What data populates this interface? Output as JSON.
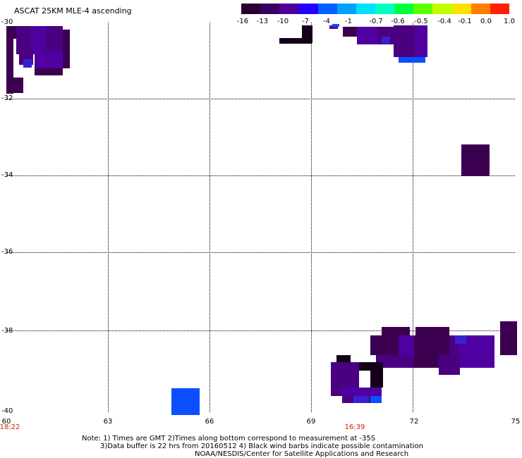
{
  "title": "ASCAT 25KM MLE-4 ascending",
  "colorbar": {
    "labels": [
      "-16",
      "-13",
      "-10",
      "-7",
      "-4",
      "-1",
      "-0.7",
      "-0.6",
      "-0.5",
      "-0.4",
      "-0.1",
      "0.0",
      "1.0"
    ],
    "colors": [
      "#2a0030",
      "#3a0060",
      "#50009a",
      "#2000ff",
      "#0060ff",
      "#00a0ff",
      "#00e0ff",
      "#00ffc0",
      "#00ff40",
      "#60ff00",
      "#c0ff00",
      "#ffe000",
      "#ff8000",
      "#ff2000"
    ]
  },
  "axes": {
    "lat_labels": [
      "-30",
      "-32",
      "-34",
      "-36",
      "-38",
      "-40"
    ],
    "lon_labels": [
      "60",
      "63",
      "66",
      "69",
      "72",
      "75"
    ],
    "time_labels": [
      {
        "text": "18:22",
        "lon_index": 0
      },
      {
        "text": "16:39",
        "lon_index": 3
      }
    ]
  },
  "note": {
    "line1": "Note: 1) Times are GMT 2)Times along bottom correspond to measurement at -35S",
    "line2": "3)Data buffer is 22 hrs from 20160512 4) Black wind barbs indicate possible contamination",
    "line3": "NOAA/NESDIS/Center for Satellite Applications and Research"
  },
  "palette": {
    "dark_purple": "#3c0050",
    "purple": "#4a0080",
    "violet": "#5000a0",
    "blue_violet": "#3a20d0",
    "blue": "#0a50ff",
    "black": "#15001a"
  }
}
